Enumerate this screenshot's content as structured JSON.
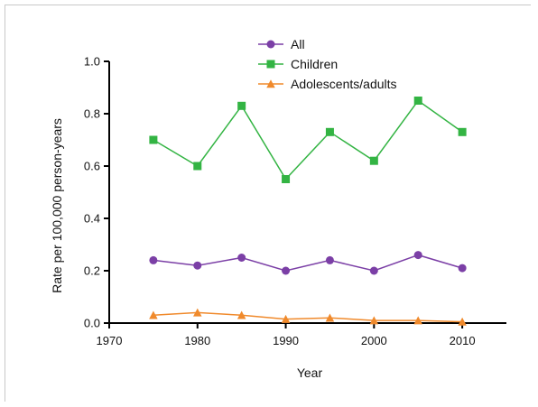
{
  "chart_data": {
    "type": "line",
    "title": "",
    "xlabel": "Year",
    "ylabel": "Rate per 100,000 person-years",
    "xlim": [
      1970,
      2015
    ],
    "ylim": [
      0.0,
      1.0
    ],
    "x_ticks": [
      1970,
      1980,
      1990,
      2000,
      2010
    ],
    "y_ticks": [
      0.0,
      0.2,
      0.4,
      0.6,
      0.8,
      1.0
    ],
    "x_tick_labels": [
      "1970",
      "1980",
      "1990",
      "2000",
      "2010"
    ],
    "y_tick_labels": [
      "0.0",
      "0.2",
      "0.4",
      "0.6",
      "0.8",
      "1.0"
    ],
    "x": [
      1975,
      1980,
      1985,
      1990,
      1995,
      2000,
      2005,
      2010
    ],
    "legend_position": "top-center",
    "series": [
      {
        "name": "All",
        "color": "#7b3fa6",
        "marker": "circle",
        "values": [
          0.24,
          0.22,
          0.25,
          0.2,
          0.24,
          0.2,
          0.26,
          0.21
        ]
      },
      {
        "name": "Children",
        "color": "#33b443",
        "marker": "square",
        "values": [
          0.7,
          0.6,
          0.83,
          0.55,
          0.73,
          0.62,
          0.85,
          0.73
        ]
      },
      {
        "name": "Adolescents/adults",
        "color": "#f08a2c",
        "marker": "triangle",
        "values": [
          0.03,
          0.04,
          0.03,
          0.015,
          0.02,
          0.01,
          0.01,
          0.005
        ]
      }
    ]
  }
}
